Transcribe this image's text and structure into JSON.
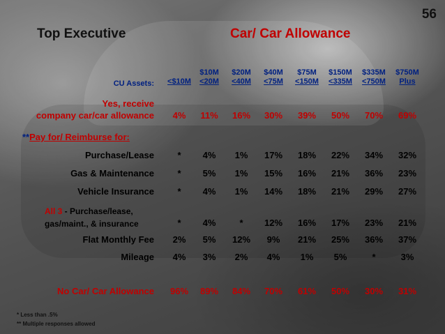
{
  "page_number": "56",
  "title_left": "Top Executive",
  "title_right": "Car/ Car Allowance",
  "cu_assets_label": "CU Assets:",
  "columns": [
    {
      "l1": "",
      "l2": "<$10M"
    },
    {
      "l1": "$10M",
      "l2": "<20M"
    },
    {
      "l1": "$20M",
      "l2": "<40M"
    },
    {
      "l1": "$40M",
      "l2": "<75M"
    },
    {
      "l1": "$75M",
      "l2": "<150M"
    },
    {
      "l1": "$150M",
      "l2": "<335M"
    },
    {
      "l1": "$335M",
      "l2": "<750M"
    },
    {
      "l1": "$750M",
      "l2": "Plus"
    }
  ],
  "rows": {
    "yes": {
      "label_1": "Yes, receive",
      "label_2": "company car/car allowance",
      "values": [
        "4%",
        "11%",
        "16%",
        "30%",
        "39%",
        "50%",
        "70%",
        "69%"
      ]
    },
    "pay_prefix": "**",
    "pay_label": "Pay for/ Reimburse for:",
    "purchase": {
      "label": "Purchase/Lease",
      "values": [
        "*",
        "4%",
        "1%",
        "17%",
        "18%",
        "22%",
        "34%",
        "32%"
      ]
    },
    "gas": {
      "label": "Gas & Maintenance",
      "values": [
        "*",
        "5%",
        "1%",
        "15%",
        "16%",
        "21%",
        "36%",
        "23%"
      ]
    },
    "insurance": {
      "label": "Vehicle Insurance",
      "values": [
        "*",
        "4%",
        "1%",
        "14%",
        "18%",
        "21%",
        "29%",
        "27%"
      ]
    },
    "all3": {
      "label_a": "All 3",
      "label_b": " - Purchase/lease,",
      "label_c": "gas/maint., & insurance",
      "values": [
        "*",
        "4%",
        "*",
        "12%",
        "16%",
        "17%",
        "23%",
        "21%"
      ]
    },
    "flat": {
      "label": "Flat Monthly Fee",
      "values": [
        "2%",
        "5%",
        "12%",
        "9%",
        "21%",
        "25%",
        "36%",
        "37%"
      ]
    },
    "mileage": {
      "label": "Mileage",
      "values": [
        "4%",
        "3%",
        "2%",
        "4%",
        "1%",
        "5%",
        "*",
        "3%"
      ]
    },
    "nocar": {
      "label": "No Car/ Car Allowance",
      "values": [
        "96%",
        "89%",
        "84%",
        "70%",
        "61%",
        "50%",
        "30%",
        "31%"
      ]
    }
  },
  "footnotes": [
    "* Less than .5%",
    "** Multiple responses allowed"
  ]
}
